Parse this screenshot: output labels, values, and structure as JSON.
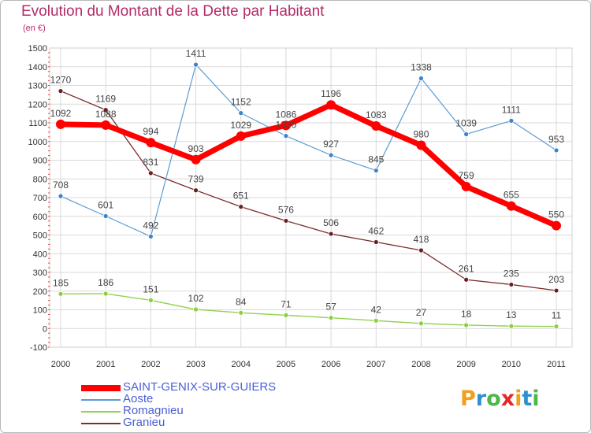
{
  "title": "Evolution du Montant de la Dette par Habitant",
  "subtitle": "(en €)",
  "logo": {
    "text": "Proxiti",
    "letter_colors": [
      "#f0a020",
      "#2f8fd0",
      "#4cb848",
      "#e8262a",
      "#f0a020",
      "#2f8fd0",
      "#4cb848"
    ]
  },
  "chart_data": {
    "type": "line",
    "title": "Evolution du Montant de la Dette par Habitant",
    "ylabel": "(en €)",
    "xlabel": "",
    "ylim": [
      -100,
      1500
    ],
    "y_ticks": [
      "-100",
      "0",
      "100",
      "200",
      "300",
      "400",
      "500",
      "600",
      "700",
      "800",
      "900",
      "1000",
      "1100",
      "1200",
      "1300",
      "1400",
      "1500"
    ],
    "categories": [
      "2000",
      "2001",
      "2002",
      "2003",
      "2004",
      "2005",
      "2006",
      "2007",
      "2008",
      "2009",
      "2010",
      "2011"
    ],
    "grid": true,
    "legend_position": "bottom-left",
    "series": [
      {
        "name": "SAINT-GENIX-SUR-GUIERS",
        "color": "#ff0000",
        "values": [
          1092,
          1088,
          994,
          903,
          1029,
          1086,
          1196,
          1083,
          980,
          759,
          655,
          550
        ]
      },
      {
        "name": "Aoste",
        "color": "#5b9bd5",
        "values": [
          708,
          601,
          492,
          1411,
          1152,
          1030,
          927,
          845,
          1338,
          1039,
          1111,
          953
        ]
      },
      {
        "name": "Romagnieu",
        "color": "#92d050",
        "values": [
          185,
          186,
          151,
          102,
          84,
          71,
          57,
          42,
          27,
          18,
          13,
          11
        ]
      },
      {
        "name": "Granieu",
        "color": "#7b2c2c",
        "values": [
          1270,
          1169,
          831,
          739,
          651,
          576,
          506,
          462,
          418,
          261,
          235,
          203
        ]
      }
    ]
  }
}
